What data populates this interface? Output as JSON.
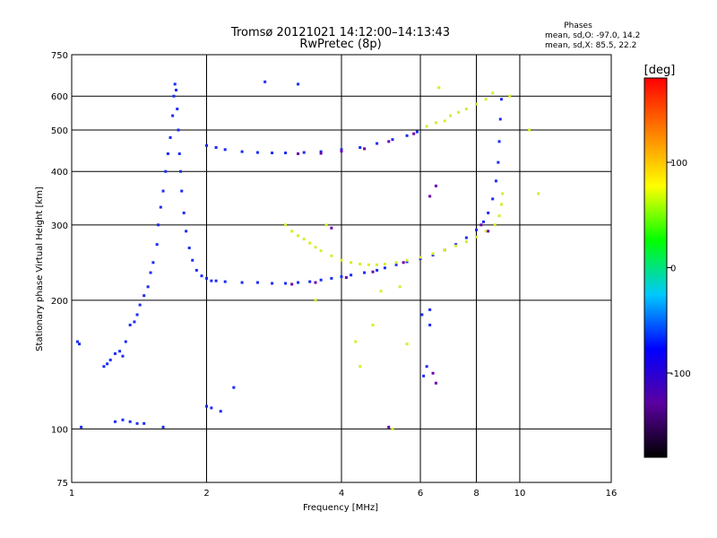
{
  "chart_data": {
    "type": "scatter",
    "title": "Tromsø 20121021 14:12:00–14:13:43",
    "subtitle": "RwPretec (8p)",
    "stats": {
      "title": "Phases",
      "line1": "mean, sd,O:  -97.0, 14.2",
      "line2": "mean, sd,X:  85.5, 22.2"
    },
    "xlabel": "Frequency [MHz]",
    "ylabel": "Stationary phase Virtual Height [km]",
    "x_scale": "log2",
    "y_scale": "log",
    "xlim": [
      1,
      16
    ],
    "ylim": [
      75,
      750
    ],
    "xticks": [
      1,
      2,
      4,
      6,
      8,
      10,
      16
    ],
    "xtick_labels": [
      "1",
      "2",
      "4",
      "6",
      "8",
      "10",
      "16"
    ],
    "yticks": [
      75,
      100,
      200,
      300,
      400,
      500,
      600,
      750
    ],
    "ytick_labels": [
      "75",
      "100",
      "200",
      "300",
      "400",
      "500",
      "600",
      "750"
    ],
    "x_gridlines": [
      2,
      4,
      6,
      8,
      10
    ],
    "y_gridlines": [
      100,
      200,
      300,
      400,
      500,
      600
    ],
    "grid": true,
    "colorbar": {
      "label": "[deg]",
      "min": -180,
      "max": 180,
      "ticks": [
        100,
        0,
        -100
      ],
      "tick_labels": [
        "100",
        "0",
        "-100"
      ],
      "colors": [
        "#000000",
        "#5a00a0",
        "#0000ff",
        "#00c8ff",
        "#00ff00",
        "#ffff00",
        "#ff8000",
        "#ff0000"
      ]
    },
    "series": [
      {
        "points": [
          [
            1.03,
            160
          ],
          [
            1.04,
            158
          ],
          [
            1.05,
            101
          ],
          [
            1.18,
            140
          ],
          [
            1.2,
            142
          ],
          [
            1.22,
            145
          ],
          [
            1.25,
            150
          ],
          [
            1.28,
            152
          ],
          [
            1.3,
            148
          ],
          [
            1.32,
            160
          ],
          [
            1.35,
            175
          ],
          [
            1.38,
            178
          ],
          [
            1.4,
            185
          ],
          [
            1.42,
            195
          ],
          [
            1.45,
            205
          ],
          [
            1.48,
            215
          ],
          [
            1.5,
            232
          ],
          [
            1.52,
            245
          ],
          [
            1.55,
            270
          ],
          [
            1.56,
            300
          ],
          [
            1.58,
            330
          ],
          [
            1.6,
            360
          ],
          [
            1.62,
            400
          ],
          [
            1.64,
            440
          ],
          [
            1.66,
            480
          ],
          [
            1.68,
            540
          ],
          [
            1.69,
            600
          ],
          [
            1.7,
            640
          ],
          [
            1.71,
            620
          ],
          [
            1.72,
            560
          ],
          [
            1.73,
            500
          ],
          [
            1.74,
            440
          ],
          [
            1.75,
            400
          ],
          [
            1.76,
            360
          ],
          [
            1.78,
            320
          ],
          [
            1.8,
            290
          ],
          [
            1.83,
            265
          ],
          [
            1.86,
            248
          ],
          [
            1.9,
            235
          ],
          [
            1.95,
            228
          ],
          [
            2.0,
            225
          ],
          [
            2.05,
            222
          ],
          [
            2.1,
            222
          ],
          [
            2.2,
            221
          ],
          [
            2.4,
            220
          ],
          [
            2.6,
            220
          ],
          [
            2.8,
            219
          ],
          [
            3.0,
            219
          ],
          [
            3.2,
            220
          ],
          [
            3.4,
            221
          ],
          [
            3.6,
            223
          ],
          [
            3.8,
            225
          ],
          [
            4.0,
            227
          ],
          [
            4.2,
            229
          ],
          [
            4.5,
            232
          ],
          [
            4.8,
            235
          ],
          [
            5.0,
            238
          ],
          [
            5.3,
            242
          ],
          [
            5.6,
            246
          ],
          [
            6.0,
            250
          ],
          [
            6.4,
            255
          ],
          [
            6.8,
            262
          ],
          [
            7.2,
            270
          ],
          [
            7.6,
            280
          ],
          [
            8.0,
            292
          ],
          [
            8.3,
            305
          ],
          [
            8.5,
            320
          ],
          [
            8.7,
            345
          ],
          [
            8.85,
            380
          ],
          [
            8.95,
            420
          ],
          [
            9.0,
            470
          ],
          [
            9.05,
            530
          ],
          [
            9.1,
            590
          ],
          [
            2.0,
            460
          ],
          [
            2.1,
            455
          ],
          [
            2.2,
            450
          ],
          [
            2.4,
            445
          ],
          [
            2.6,
            443
          ],
          [
            2.8,
            442
          ],
          [
            3.0,
            442
          ],
          [
            3.3,
            443
          ],
          [
            3.6,
            445
          ],
          [
            4.0,
            450
          ],
          [
            4.4,
            455
          ],
          [
            4.8,
            465
          ],
          [
            5.2,
            475
          ],
          [
            5.6,
            485
          ],
          [
            5.9,
            495
          ],
          [
            1.35,
            104
          ],
          [
            1.4,
            103
          ],
          [
            1.45,
            103
          ],
          [
            1.3,
            105
          ],
          [
            1.25,
            104
          ],
          [
            1.6,
            101
          ],
          [
            2.05,
            112
          ],
          [
            2.15,
            110
          ],
          [
            2.0,
            113
          ],
          [
            2.3,
            125
          ],
          [
            2.7,
            648
          ],
          [
            3.2,
            640
          ],
          [
            6.3,
            175
          ],
          [
            6.3,
            190
          ],
          [
            6.2,
            140
          ],
          [
            6.1,
            133
          ],
          [
            6.05,
            185
          ]
        ]
      },
      {
        "points": [
          [
            3.0,
            300
          ],
          [
            3.1,
            290
          ],
          [
            3.2,
            283
          ],
          [
            3.3,
            278
          ],
          [
            3.4,
            272
          ],
          [
            3.5,
            266
          ],
          [
            3.6,
            261
          ],
          [
            3.8,
            254
          ],
          [
            4.0,
            248
          ],
          [
            4.2,
            245
          ],
          [
            4.4,
            243
          ],
          [
            4.6,
            242
          ],
          [
            4.8,
            242
          ],
          [
            5.0,
            243
          ],
          [
            5.3,
            245
          ],
          [
            5.6,
            248
          ],
          [
            6.0,
            252
          ],
          [
            6.4,
            257
          ],
          [
            6.8,
            262
          ],
          [
            7.2,
            268
          ],
          [
            7.6,
            274
          ],
          [
            8.0,
            281
          ],
          [
            8.4,
            290
          ],
          [
            8.8,
            300
          ],
          [
            9.0,
            315
          ],
          [
            9.1,
            335
          ],
          [
            9.15,
            355
          ],
          [
            7.0,
            540
          ],
          [
            7.3,
            550
          ],
          [
            7.6,
            560
          ],
          [
            8.0,
            575
          ],
          [
            8.4,
            590
          ],
          [
            8.7,
            610
          ],
          [
            6.8,
            525
          ],
          [
            6.5,
            520
          ],
          [
            6.2,
            510
          ],
          [
            4.3,
            160
          ],
          [
            4.7,
            175
          ],
          [
            5.6,
            158
          ],
          [
            4.4,
            140
          ],
          [
            10.5,
            500
          ],
          [
            11.0,
            355
          ],
          [
            6.6,
            628
          ],
          [
            3.5,
            200
          ],
          [
            3.7,
            300
          ],
          [
            4.9,
            210
          ],
          [
            5.2,
            100
          ],
          [
            9.5,
            600
          ],
          [
            5.4,
            215
          ]
        ]
      },
      {
        "points": [
          [
            3.2,
            440
          ],
          [
            3.6,
            441
          ],
          [
            4.0,
            446
          ],
          [
            4.5,
            452
          ],
          [
            5.1,
            470
          ],
          [
            5.8,
            490
          ],
          [
            3.1,
            218
          ],
          [
            3.5,
            220
          ],
          [
            4.1,
            226
          ],
          [
            4.7,
            233
          ],
          [
            5.5,
            245
          ],
          [
            8.2,
            300
          ],
          [
            8.5,
            290
          ],
          [
            6.5,
            370
          ],
          [
            6.3,
            350
          ],
          [
            6.4,
            135
          ],
          [
            6.5,
            128
          ],
          [
            5.1,
            101
          ],
          [
            3.8,
            295
          ]
        ]
      }
    ]
  }
}
